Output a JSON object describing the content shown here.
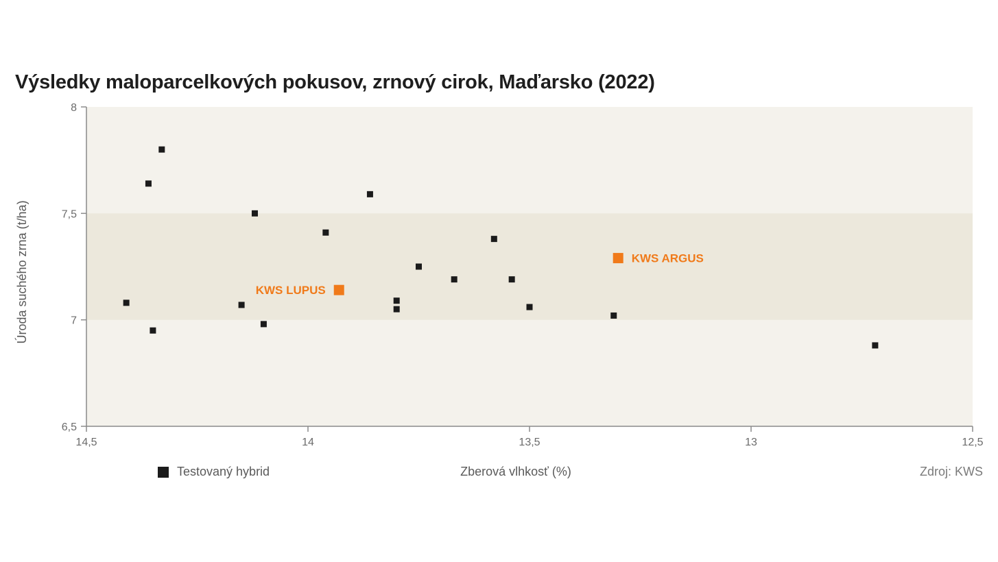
{
  "chart_data": {
    "type": "scatter",
    "title": "Výsledky maloparcelkových pokusov, zrnový cirok, Maďarsko (2022)",
    "xlabel": "Zberová vlhkosť (%)",
    "ylabel": "Úroda suchého zrna (t/ha)",
    "xlim": [
      14.5,
      12.5
    ],
    "x_reversed": true,
    "ylim": [
      6.5,
      8
    ],
    "xticks": [
      14.5,
      14,
      13.5,
      13,
      12.5
    ],
    "xtick_labels": [
      "14,5",
      "14",
      "13,5",
      "13",
      "12,5"
    ],
    "yticks": [
      6.5,
      7,
      7.5,
      8
    ],
    "ytick_labels": [
      "6,5",
      "7",
      "7,5",
      "8"
    ],
    "highlight_band": [
      7,
      7.5
    ],
    "grid": false,
    "legend_position": "bottom-left",
    "series": [
      {
        "name": "Testovaný hybrid",
        "color": "#1b1b1b",
        "points": [
          {
            "x": 14.41,
            "y": 7.08
          },
          {
            "x": 14.36,
            "y": 7.64
          },
          {
            "x": 14.35,
            "y": 6.95
          },
          {
            "x": 14.33,
            "y": 7.8
          },
          {
            "x": 14.15,
            "y": 7.07
          },
          {
            "x": 14.12,
            "y": 7.5
          },
          {
            "x": 14.1,
            "y": 6.98
          },
          {
            "x": 13.96,
            "y": 7.41
          },
          {
            "x": 13.86,
            "y": 7.59
          },
          {
            "x": 13.8,
            "y": 7.09
          },
          {
            "x": 13.8,
            "y": 7.05
          },
          {
            "x": 13.75,
            "y": 7.25
          },
          {
            "x": 13.67,
            "y": 7.19
          },
          {
            "x": 13.58,
            "y": 7.38
          },
          {
            "x": 13.54,
            "y": 7.19
          },
          {
            "x": 13.5,
            "y": 7.06
          },
          {
            "x": 13.31,
            "y": 7.02
          },
          {
            "x": 12.72,
            "y": 6.88
          }
        ]
      },
      {
        "name": "KWS LUPUS",
        "color": "#f07a1a",
        "points": [
          {
            "x": 13.93,
            "y": 7.14
          }
        ],
        "label_side": "left"
      },
      {
        "name": "KWS ARGUS",
        "color": "#f07a1a",
        "points": [
          {
            "x": 13.3,
            "y": 7.29
          }
        ],
        "label_side": "right"
      }
    ]
  },
  "legend": {
    "label": "Testovaný hybrid"
  },
  "source": "Zdroj: KWS"
}
